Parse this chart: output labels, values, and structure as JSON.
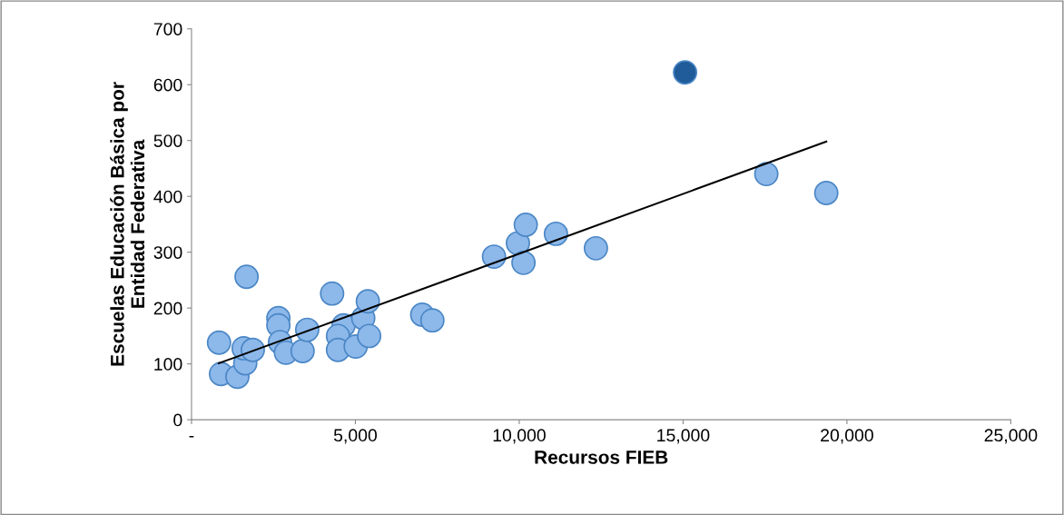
{
  "chart_data": {
    "type": "scatter",
    "xlabel": "Recursos FIEB",
    "ylabel": "Escuelas Educación Básica por\nEntidad Federativa",
    "xlim": [
      0,
      25000
    ],
    "ylim": [
      0,
      700
    ],
    "xticks": [
      {
        "value": 0,
        "label": "-"
      },
      {
        "value": 5000,
        "label": "5,000"
      },
      {
        "value": 10000,
        "label": "10,000"
      },
      {
        "value": 15000,
        "label": "15,000"
      },
      {
        "value": 20000,
        "label": "20,000"
      },
      {
        "value": 25000,
        "label": "25,000"
      }
    ],
    "yticks": [
      0,
      100,
      200,
      300,
      400,
      500,
      600,
      700
    ],
    "grid": false,
    "marker": "circle",
    "series": [
      {
        "color": "#8db8ea",
        "x": [
          1680,
          840,
          900,
          1400,
          1640,
          1590,
          1870,
          2650,
          2650,
          2700,
          2880,
          3390,
          3530,
          4290,
          4640,
          4470,
          4470,
          5010,
          5240,
          5380,
          5420,
          7040,
          7350,
          9230,
          9960,
          10200,
          10130,
          11120,
          12340,
          17540,
          19370
        ],
        "values": [
          256,
          138,
          82,
          77,
          101,
          128,
          125,
          182,
          169,
          139,
          120,
          123,
          161,
          226,
          169,
          150,
          125,
          131,
          182,
          212,
          150,
          188,
          178,
          292,
          316,
          349,
          281,
          333,
          307,
          440,
          406
        ]
      },
      {
        "color": "#1f5c99",
        "x": [
          15060
        ],
        "values": [
          622
        ]
      },
      {
        "type": "line",
        "color": "#000000",
        "marker": "none",
        "x": [
          830,
          19370
        ],
        "values": [
          101,
          498
        ]
      }
    ]
  }
}
